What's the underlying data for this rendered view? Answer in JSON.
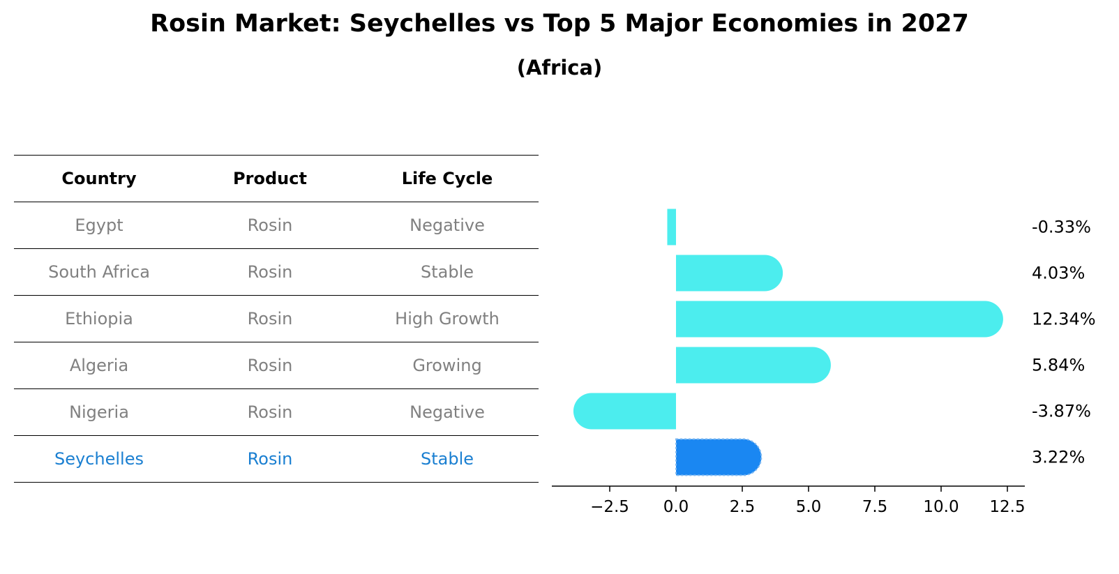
{
  "header": {
    "title": "Rosin Market: Seychelles vs Top 5 Major Economies in 2027",
    "subtitle": "(Africa)"
  },
  "table": {
    "columns": [
      "Country",
      "Product",
      "Life Cycle"
    ],
    "rows": [
      {
        "country": "Egypt",
        "product": "Rosin",
        "life_cycle": "Negative"
      },
      {
        "country": "South Africa",
        "product": "Rosin",
        "life_cycle": "Stable"
      },
      {
        "country": "Ethiopia",
        "product": "Rosin",
        "life_cycle": "High Growth"
      },
      {
        "country": "Algeria",
        "product": "Rosin",
        "life_cycle": "Growing"
      },
      {
        "country": "Nigeria",
        "product": "Rosin",
        "life_cycle": "Negative"
      },
      {
        "country": "Seychelles",
        "product": "Rosin",
        "life_cycle": "Stable"
      }
    ],
    "highlight_row": 5,
    "text_color": "#808080",
    "highlight_color": "#1a7fd1"
  },
  "chart_data": {
    "type": "bar",
    "orientation": "horizontal",
    "categories": [
      "Egypt",
      "South Africa",
      "Ethiopia",
      "Algeria",
      "Nigeria",
      "Seychelles"
    ],
    "values": [
      -0.33,
      4.03,
      12.34,
      5.84,
      -3.87,
      3.22
    ],
    "value_labels": [
      "-0.33%",
      "4.03%",
      "12.34%",
      "5.84%",
      "-3.87%",
      "3.22%"
    ],
    "xticks": [
      -2.5,
      0.0,
      2.5,
      5.0,
      7.5,
      10.0,
      12.5
    ],
    "xtick_labels": [
      "−2.5",
      "0.0",
      "2.5",
      "5.0",
      "7.5",
      "10.0",
      "12.5"
    ],
    "xlim": [
      -4.7,
      13.2
    ],
    "highlight_index": 5,
    "bar_color": "#4cedee",
    "highlight_color": "#1a87f2",
    "grid": false
  }
}
